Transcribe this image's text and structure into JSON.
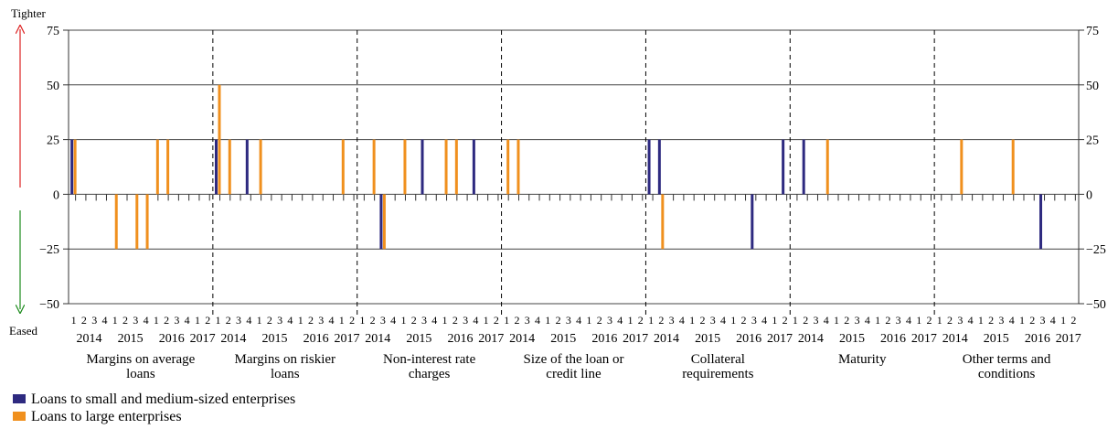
{
  "chart_data": {
    "type": "bar",
    "y_label_top": "Tighter",
    "y_label_bottom": "Eased",
    "ylim": [
      -50,
      75
    ],
    "yticks": [
      {
        "value": -50,
        "label": "−50"
      },
      {
        "value": -25,
        "label": "−25"
      },
      0,
      25,
      50,
      75
    ],
    "grid": true,
    "panels": [
      "Margins on average loans",
      "Margins on riskier loans",
      "Non-interest rate charges",
      "Size of the loan or credit line",
      "Collateral requirements",
      "Maturity",
      "Other terms and conditions"
    ],
    "categories": [
      "1",
      "2",
      "3",
      "4",
      "1",
      "2",
      "3",
      "4",
      "1",
      "2",
      "3",
      "4",
      "1",
      "2",
      "1",
      "2",
      "3",
      "4",
      "1",
      "2",
      "3",
      "4",
      "1",
      "2",
      "3",
      "4",
      "1",
      "2",
      "1",
      "2",
      "3",
      "4",
      "1",
      "2",
      "3",
      "4",
      "1",
      "2",
      "3",
      "4",
      "1",
      "2",
      "1",
      "2",
      "3",
      "4",
      "1",
      "2",
      "3",
      "4",
      "1",
      "2",
      "3",
      "4",
      "1",
      "2",
      "1",
      "2",
      "3",
      "4",
      "1",
      "2",
      "3",
      "4",
      "1",
      "2",
      "3",
      "4",
      "1",
      "2",
      "1",
      "2",
      "3",
      "4",
      "1",
      "2",
      "3",
      "4",
      "1",
      "2",
      "3",
      "4",
      "1",
      "2",
      "1",
      "2",
      "3",
      "4",
      "1",
      "2",
      "3",
      "4",
      "1",
      "2",
      "3",
      "4",
      "1",
      "2"
    ],
    "years": [
      "2014",
      "2015",
      "2016",
      "2017",
      "2014",
      "2015",
      "2016",
      "2017",
      "2014",
      "2015",
      "2016",
      "2017",
      "2014",
      "2015",
      "2016",
      "2017",
      "2014",
      "2015",
      "2016",
      "2017",
      "2014",
      "2015",
      "2016",
      "2017",
      "2014",
      "2015",
      "2016",
      "2017"
    ],
    "series": [
      {
        "name": "Loans to small and medium-sized enterprises",
        "color": "#2e2a80",
        "values": [
          25,
          0,
          0,
          0,
          0,
          0,
          0,
          0,
          0,
          0,
          0,
          0,
          0,
          0,
          25,
          0,
          0,
          25,
          0,
          0,
          0,
          0,
          0,
          0,
          0,
          0,
          0,
          0,
          0,
          0,
          -25,
          0,
          0,
          0,
          25,
          0,
          0,
          0,
          0,
          25,
          0,
          0,
          0,
          0,
          0,
          0,
          0,
          0,
          0,
          0,
          0,
          0,
          0,
          0,
          0,
          0,
          25,
          25,
          0,
          0,
          0,
          0,
          0,
          0,
          0,
          0,
          -25,
          0,
          0,
          25,
          0,
          25,
          0,
          0,
          0,
          0,
          0,
          0,
          0,
          0,
          0,
          0,
          0,
          0,
          0,
          0,
          0,
          0,
          0,
          0,
          0,
          0,
          0,
          0,
          -25,
          0,
          0,
          0
        ]
      },
      {
        "name": "Loans to large enterprises",
        "color": "#f0901e",
        "values": [
          25,
          0,
          0,
          0,
          -25,
          0,
          -25,
          -25,
          25,
          25,
          0,
          0,
          0,
          0,
          50,
          25,
          0,
          0,
          25,
          0,
          0,
          0,
          0,
          0,
          0,
          0,
          25,
          0,
          0,
          25,
          -25,
          0,
          25,
          0,
          0,
          0,
          25,
          25,
          0,
          0,
          0,
          0,
          25,
          25,
          0,
          0,
          0,
          0,
          0,
          0,
          0,
          0,
          0,
          0,
          0,
          0,
          0,
          -25,
          0,
          0,
          0,
          0,
          0,
          0,
          0,
          0,
          0,
          0,
          0,
          0,
          0,
          0,
          0,
          25,
          0,
          0,
          0,
          0,
          0,
          0,
          0,
          0,
          0,
          0,
          0,
          0,
          25,
          0,
          0,
          0,
          0,
          25,
          0,
          0,
          0,
          0,
          0,
          0
        ]
      }
    ]
  }
}
